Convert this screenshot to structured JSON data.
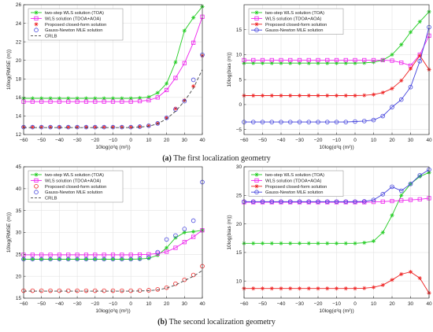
{
  "captions": [
    {
      "label": "(a)",
      "text": " The first localization geometry"
    },
    {
      "label": "(b)",
      "text": " The second localization geometry"
    }
  ],
  "chart_data": [
    {
      "type": "line",
      "ylabel": "10log(RMSE (m))",
      "xlabel": "10log(σ²q (m²))",
      "xlim": [
        -60,
        40
      ],
      "ylim": [
        12,
        26
      ],
      "xticks": [
        -60,
        -50,
        -40,
        -30,
        -20,
        -10,
        0,
        10,
        20,
        30,
        40
      ],
      "yticks": [
        12,
        14,
        16,
        18,
        20,
        22,
        24,
        26
      ],
      "grid": true,
      "legend": "top-left",
      "x": [
        -60,
        -55,
        -50,
        -45,
        -40,
        -35,
        -30,
        -25,
        -20,
        -15,
        -10,
        -5,
        0,
        5,
        10,
        15,
        20,
        25,
        30,
        35,
        40
      ],
      "series": [
        {
          "name": "two-step WLS solution (TOA)",
          "color": "#22cc22",
          "marker": "star",
          "line": "solid",
          "values": [
            15.9,
            15.9,
            15.9,
            15.9,
            15.9,
            15.9,
            15.9,
            15.9,
            15.9,
            15.9,
            15.9,
            15.9,
            15.9,
            15.95,
            16.05,
            16.5,
            17.5,
            19.8,
            23.2,
            24.6,
            25.8
          ]
        },
        {
          "name": "WLS solution (TDOA+AOA)",
          "color": "#ee22ee",
          "marker": "square",
          "line": "solid",
          "values": [
            15.55,
            15.55,
            15.55,
            15.55,
            15.55,
            15.55,
            15.55,
            15.55,
            15.55,
            15.55,
            15.55,
            15.55,
            15.55,
            15.6,
            15.7,
            16.0,
            16.8,
            18.1,
            19.7,
            21.9,
            24.7
          ]
        },
        {
          "name": "Proposed closed-form solution",
          "color": "#ee2222",
          "marker": "star",
          "line": "none",
          "values": [
            12.8,
            12.8,
            12.8,
            12.8,
            12.8,
            12.8,
            12.8,
            12.8,
            12.8,
            12.8,
            12.8,
            12.8,
            12.8,
            12.85,
            12.95,
            13.2,
            13.8,
            14.8,
            15.7,
            17.2,
            20.5
          ]
        },
        {
          "name": "Gauss-Newton MLE solution",
          "color": "#4444dd",
          "marker": "circle",
          "line": "none",
          "values": [
            12.8,
            12.8,
            12.8,
            12.8,
            12.8,
            12.8,
            12.8,
            12.8,
            12.8,
            12.8,
            12.8,
            12.8,
            12.8,
            12.85,
            12.95,
            13.2,
            13.8,
            14.7,
            15.6,
            17.9,
            20.6
          ]
        },
        {
          "name": "CRLB",
          "color": "#444444",
          "marker": "none",
          "line": "dashed",
          "values": [
            12.75,
            12.75,
            12.75,
            12.75,
            12.75,
            12.75,
            12.75,
            12.75,
            12.75,
            12.75,
            12.75,
            12.75,
            12.75,
            12.8,
            12.9,
            13.15,
            13.7,
            14.5,
            15.6,
            17.0,
            19.0
          ]
        }
      ]
    },
    {
      "type": "line",
      "ylabel": "10log(bias (m))",
      "xlabel": "10log(σ²q (m²))",
      "xlim": [
        -60,
        40
      ],
      "ylim": [
        -6,
        20
      ],
      "xticks": [
        -60,
        -50,
        -40,
        -30,
        -20,
        -10,
        0,
        10,
        20,
        30,
        40
      ],
      "yticks": [
        -5,
        0,
        5,
        10,
        15
      ],
      "grid": true,
      "legend": "top-left",
      "x": [
        -60,
        -55,
        -50,
        -45,
        -40,
        -35,
        -30,
        -25,
        -20,
        -15,
        -10,
        -5,
        0,
        5,
        10,
        15,
        20,
        25,
        30,
        35,
        40
      ],
      "series": [
        {
          "name": "two-step WLS solution (TOA)",
          "color": "#22cc22",
          "marker": "star",
          "line": "solid",
          "values": [
            8.3,
            8.3,
            8.3,
            8.3,
            8.3,
            8.3,
            8.3,
            8.3,
            8.3,
            8.3,
            8.3,
            8.3,
            8.3,
            8.35,
            8.5,
            8.9,
            10.0,
            12.0,
            14.5,
            16.6,
            18.6
          ]
        },
        {
          "name": "WLS solution (TDOA+AOA)",
          "color": "#ee22ee",
          "marker": "square",
          "line": "solid",
          "values": [
            8.9,
            8.9,
            8.9,
            8.9,
            8.9,
            8.9,
            8.9,
            8.9,
            8.9,
            8.9,
            8.9,
            8.9,
            8.9,
            8.9,
            8.9,
            8.9,
            8.8,
            8.4,
            7.8,
            10.0,
            13.8
          ]
        },
        {
          "name": "Proposed closed-form solution",
          "color": "#ee2222",
          "marker": "star",
          "line": "solid",
          "values": [
            1.8,
            1.8,
            1.8,
            1.8,
            1.8,
            1.8,
            1.8,
            1.8,
            1.8,
            1.8,
            1.8,
            1.8,
            1.8,
            1.85,
            2.0,
            2.4,
            3.2,
            4.8,
            7.2,
            9.8,
            7.0
          ]
        },
        {
          "name": "Gauss-Newton MLE solution",
          "color": "#4444dd",
          "marker": "circle",
          "line": "solid",
          "values": [
            -3.5,
            -3.5,
            -3.5,
            -3.5,
            -3.5,
            -3.5,
            -3.5,
            -3.5,
            -3.5,
            -3.5,
            -3.5,
            -3.5,
            -3.4,
            -3.3,
            -3.1,
            -2.3,
            -0.5,
            1.0,
            3.5,
            8.7,
            15.5
          ]
        }
      ]
    },
    {
      "type": "line",
      "ylabel": "10log(RMSE (m))",
      "xlabel": "10log(σ²q (m²))",
      "xlim": [
        -60,
        40
      ],
      "ylim": [
        15,
        45
      ],
      "xticks": [
        -60,
        -50,
        -40,
        -30,
        -20,
        -10,
        0,
        10,
        20,
        30,
        40
      ],
      "yticks": [
        15,
        20,
        25,
        30,
        35,
        40,
        45
      ],
      "grid": true,
      "legend": "top-left",
      "x": [
        -60,
        -55,
        -50,
        -45,
        -40,
        -35,
        -30,
        -25,
        -20,
        -15,
        -10,
        -5,
        0,
        5,
        10,
        15,
        20,
        25,
        30,
        35,
        40
      ],
      "series": [
        {
          "name": "two-step WLS solution (TOA)",
          "color": "#22cc22",
          "marker": "star",
          "line": "solid",
          "values": [
            23.9,
            23.9,
            23.9,
            23.9,
            23.9,
            23.9,
            23.9,
            23.9,
            23.9,
            23.9,
            23.9,
            23.9,
            23.9,
            23.95,
            24.1,
            24.8,
            26.5,
            28.8,
            30.0,
            30.2,
            30.5
          ]
        },
        {
          "name": "WLS solution (TDOA+AOA)",
          "color": "#ee22ee",
          "marker": "square",
          "line": "solid",
          "values": [
            24.9,
            24.9,
            24.9,
            24.9,
            24.9,
            24.9,
            24.9,
            24.9,
            24.9,
            24.9,
            24.9,
            24.9,
            24.9,
            24.95,
            25.0,
            25.2,
            25.6,
            26.5,
            27.8,
            29.0,
            30.5
          ]
        },
        {
          "name": "Proposed closed-form solution",
          "color": "#ee2222",
          "marker": "circle",
          "line": "none",
          "values": [
            16.7,
            16.7,
            16.7,
            16.7,
            16.7,
            16.7,
            16.7,
            16.7,
            16.7,
            16.7,
            16.7,
            16.7,
            16.7,
            16.75,
            16.8,
            17.0,
            17.4,
            18.3,
            19.2,
            20.3,
            22.3
          ]
        },
        {
          "name": "Gauss-Newton MLE solution",
          "color": "#4444dd",
          "marker": "circle",
          "line": "none",
          "values": [
            23.9,
            23.9,
            23.9,
            23.9,
            23.9,
            23.9,
            23.9,
            23.9,
            23.9,
            23.9,
            23.9,
            23.9,
            23.9,
            24.0,
            24.3,
            25.5,
            28.4,
            29.3,
            30.8,
            32.7,
            41.5
          ]
        },
        {
          "name": "CRLB",
          "color": "#444444",
          "marker": "none",
          "line": "dashed",
          "values": [
            16.6,
            16.6,
            16.6,
            16.6,
            16.6,
            16.6,
            16.6,
            16.6,
            16.6,
            16.6,
            16.6,
            16.6,
            16.6,
            16.65,
            16.7,
            16.9,
            17.3,
            18.0,
            19.0,
            20.0,
            21.3
          ]
        }
      ]
    },
    {
      "type": "line",
      "ylabel": "10log(bias (m))",
      "xlabel": "10log(σ²q (m²))",
      "xlim": [
        -60,
        40
      ],
      "ylim": [
        7,
        30
      ],
      "xticks": [
        -60,
        -50,
        -40,
        -30,
        -20,
        -10,
        0,
        10,
        20,
        30,
        40
      ],
      "yticks": [
        10,
        15,
        20,
        25,
        30
      ],
      "grid": true,
      "legend": "top-left",
      "x": [
        -60,
        -55,
        -50,
        -45,
        -40,
        -35,
        -30,
        -25,
        -20,
        -15,
        -10,
        -5,
        0,
        5,
        10,
        15,
        20,
        25,
        30,
        35,
        40
      ],
      "series": [
        {
          "name": "two-step WLS solution (TOA)",
          "color": "#22cc22",
          "marker": "star",
          "line": "solid",
          "values": [
            16.6,
            16.6,
            16.6,
            16.6,
            16.6,
            16.6,
            16.6,
            16.6,
            16.6,
            16.6,
            16.6,
            16.6,
            16.6,
            16.7,
            17.0,
            18.5,
            21.5,
            25.0,
            27.0,
            28.3,
            29.0
          ]
        },
        {
          "name": "WLS solution (TDOA+AOA)",
          "color": "#ee22ee",
          "marker": "square",
          "line": "solid",
          "values": [
            23.8,
            23.8,
            23.8,
            23.8,
            23.8,
            23.8,
            23.8,
            23.8,
            23.8,
            23.8,
            23.8,
            23.8,
            23.8,
            23.8,
            23.85,
            23.9,
            24.0,
            24.1,
            24.2,
            24.3,
            24.5
          ]
        },
        {
          "name": "Proposed closed-form solution",
          "color": "#ee2222",
          "marker": "star",
          "line": "solid",
          "values": [
            8.7,
            8.7,
            8.7,
            8.7,
            8.7,
            8.7,
            8.7,
            8.7,
            8.7,
            8.7,
            8.7,
            8.7,
            8.7,
            8.75,
            8.9,
            9.3,
            10.2,
            11.2,
            11.6,
            10.5,
            7.9
          ]
        },
        {
          "name": "Gauss-Newton MLE solution",
          "color": "#4444dd",
          "marker": "circle",
          "line": "solid",
          "values": [
            23.9,
            23.9,
            23.9,
            23.9,
            23.9,
            23.9,
            23.9,
            23.9,
            23.9,
            23.9,
            23.9,
            23.9,
            23.9,
            23.95,
            24.2,
            25.2,
            26.5,
            25.8,
            27.0,
            28.5,
            29.5
          ]
        }
      ]
    }
  ]
}
